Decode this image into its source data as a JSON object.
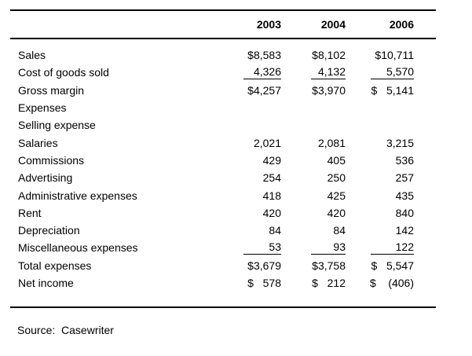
{
  "table": {
    "columns": [
      "2003",
      "2004",
      "2006"
    ],
    "rows": [
      {
        "label": "Sales",
        "values": [
          "$8,583",
          "$8,102",
          "$10,711"
        ],
        "underline": false
      },
      {
        "label": "Cost of goods sold",
        "values": [
          "4,326",
          "4,132",
          "5,570"
        ],
        "underline": true
      },
      {
        "label": "Gross margin",
        "values": [
          "$4,257",
          "$3,970",
          "$   5,141"
        ],
        "underline": false
      },
      {
        "label": "Expenses",
        "values": [
          "",
          "",
          ""
        ],
        "underline": false
      },
      {
        "label": "Selling expense",
        "values": [
          "",
          "",
          ""
        ],
        "underline": false
      },
      {
        "label": "Salaries",
        "values": [
          "2,021",
          "2,081",
          "3,215"
        ],
        "underline": false
      },
      {
        "label": "Commissions",
        "values": [
          "429",
          "405",
          "536"
        ],
        "underline": false
      },
      {
        "label": "Advertising",
        "values": [
          "254",
          "250",
          "257"
        ],
        "underline": false
      },
      {
        "label": "Administrative expenses",
        "values": [
          "418",
          "425",
          "435"
        ],
        "underline": false
      },
      {
        "label": "Rent",
        "values": [
          "420",
          "420",
          "840"
        ],
        "underline": false
      },
      {
        "label": "Depreciation",
        "values": [
          "84",
          "84",
          "142"
        ],
        "underline": false
      },
      {
        "label": "Miscellaneous expenses",
        "values": [
          "53",
          "93",
          "122"
        ],
        "underline": true
      },
      {
        "label": "Total expenses",
        "values": [
          "$3,679",
          "$3,758",
          "$   5,547"
        ],
        "underline": false
      },
      {
        "label": "Net income",
        "values": [
          "$   578",
          "$   212",
          "$    (406)"
        ],
        "underline": false
      }
    ]
  },
  "footer": {
    "source_label": "Source:  Casewriter"
  },
  "colors": {
    "text": "#000000",
    "background": "#ffffff",
    "rule": "#000000"
  }
}
